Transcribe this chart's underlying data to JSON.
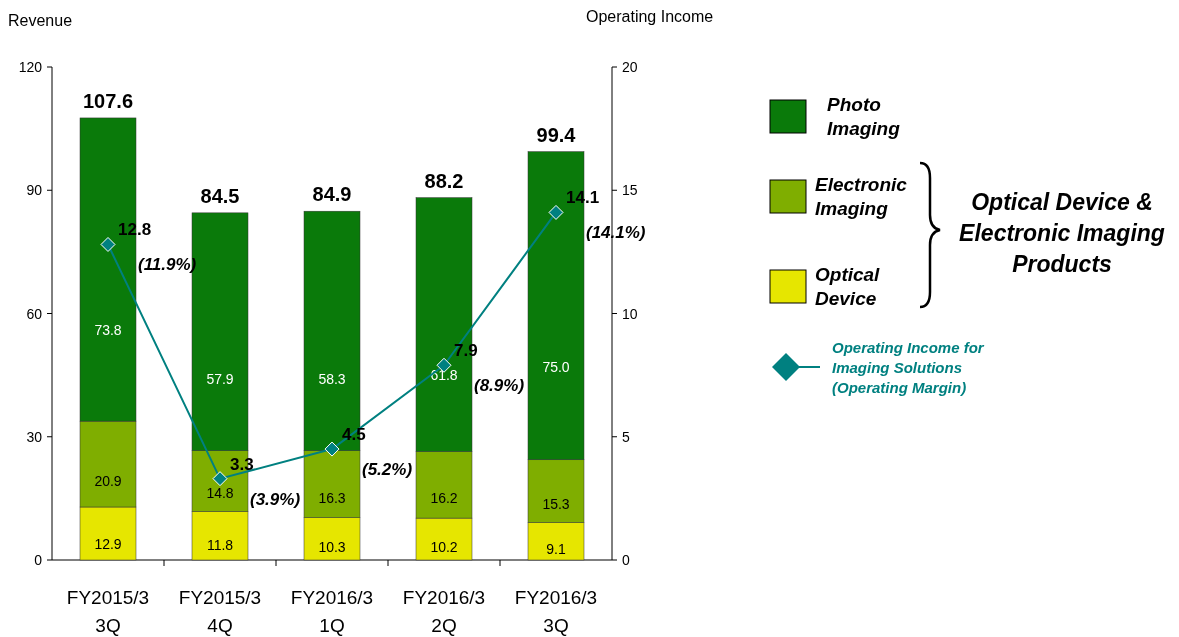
{
  "chart_data": {
    "type": "bar",
    "stacked": true,
    "ylabel": "Revenue",
    "y2label": "Operating Income",
    "categories": [
      "FY2015/3 3Q",
      "FY2015/3 4Q",
      "FY2016/3 1Q",
      "FY2016/3 2Q",
      "FY2016/3 3Q"
    ],
    "series": [
      {
        "name": "Optical Device",
        "color": "#e6e600",
        "values": [
          12.9,
          11.8,
          10.3,
          10.2,
          9.1
        ]
      },
      {
        "name": "Electronic Imaging",
        "color": "#7fae00",
        "values": [
          20.9,
          14.8,
          16.3,
          16.2,
          15.3
        ]
      },
      {
        "name": "Photo Imaging",
        "color": "#0a7a0a",
        "values": [
          73.8,
          57.9,
          58.3,
          61.8,
          75.0
        ],
        "value_labels": [
          "73.8",
          "57.9",
          "58.3",
          "61.8",
          "75.0"
        ]
      },
      {
        "name": "Operating Income for Imaging Solutions (Operating Margin)",
        "type": "line",
        "axis": "y2",
        "color": "#008080",
        "marker": "diamond",
        "values": [
          12.8,
          3.3,
          4.5,
          7.9,
          14.1
        ],
        "value_labels": [
          "12.8",
          "3.3",
          "4.5",
          "7.9",
          "14.1"
        ]
      }
    ],
    "data_labels": true,
    "totals": [
      "107.6",
      "84.5",
      "84.9",
      "88.2",
      "99.4"
    ],
    "ylim": [
      0,
      120
    ],
    "yticks": [
      0,
      30,
      60,
      90,
      120
    ],
    "y2lim": [
      0,
      20
    ],
    "y2ticks": [
      0,
      5,
      10,
      15,
      20
    ],
    "legend": "right",
    "annotations": [
      "(11.9%)",
      "(3.9%)",
      "(5.2%)",
      "(8.9%)",
      "(14.1%)",
      "Optical Device & Electronic Imaging Products"
    ]
  }
}
